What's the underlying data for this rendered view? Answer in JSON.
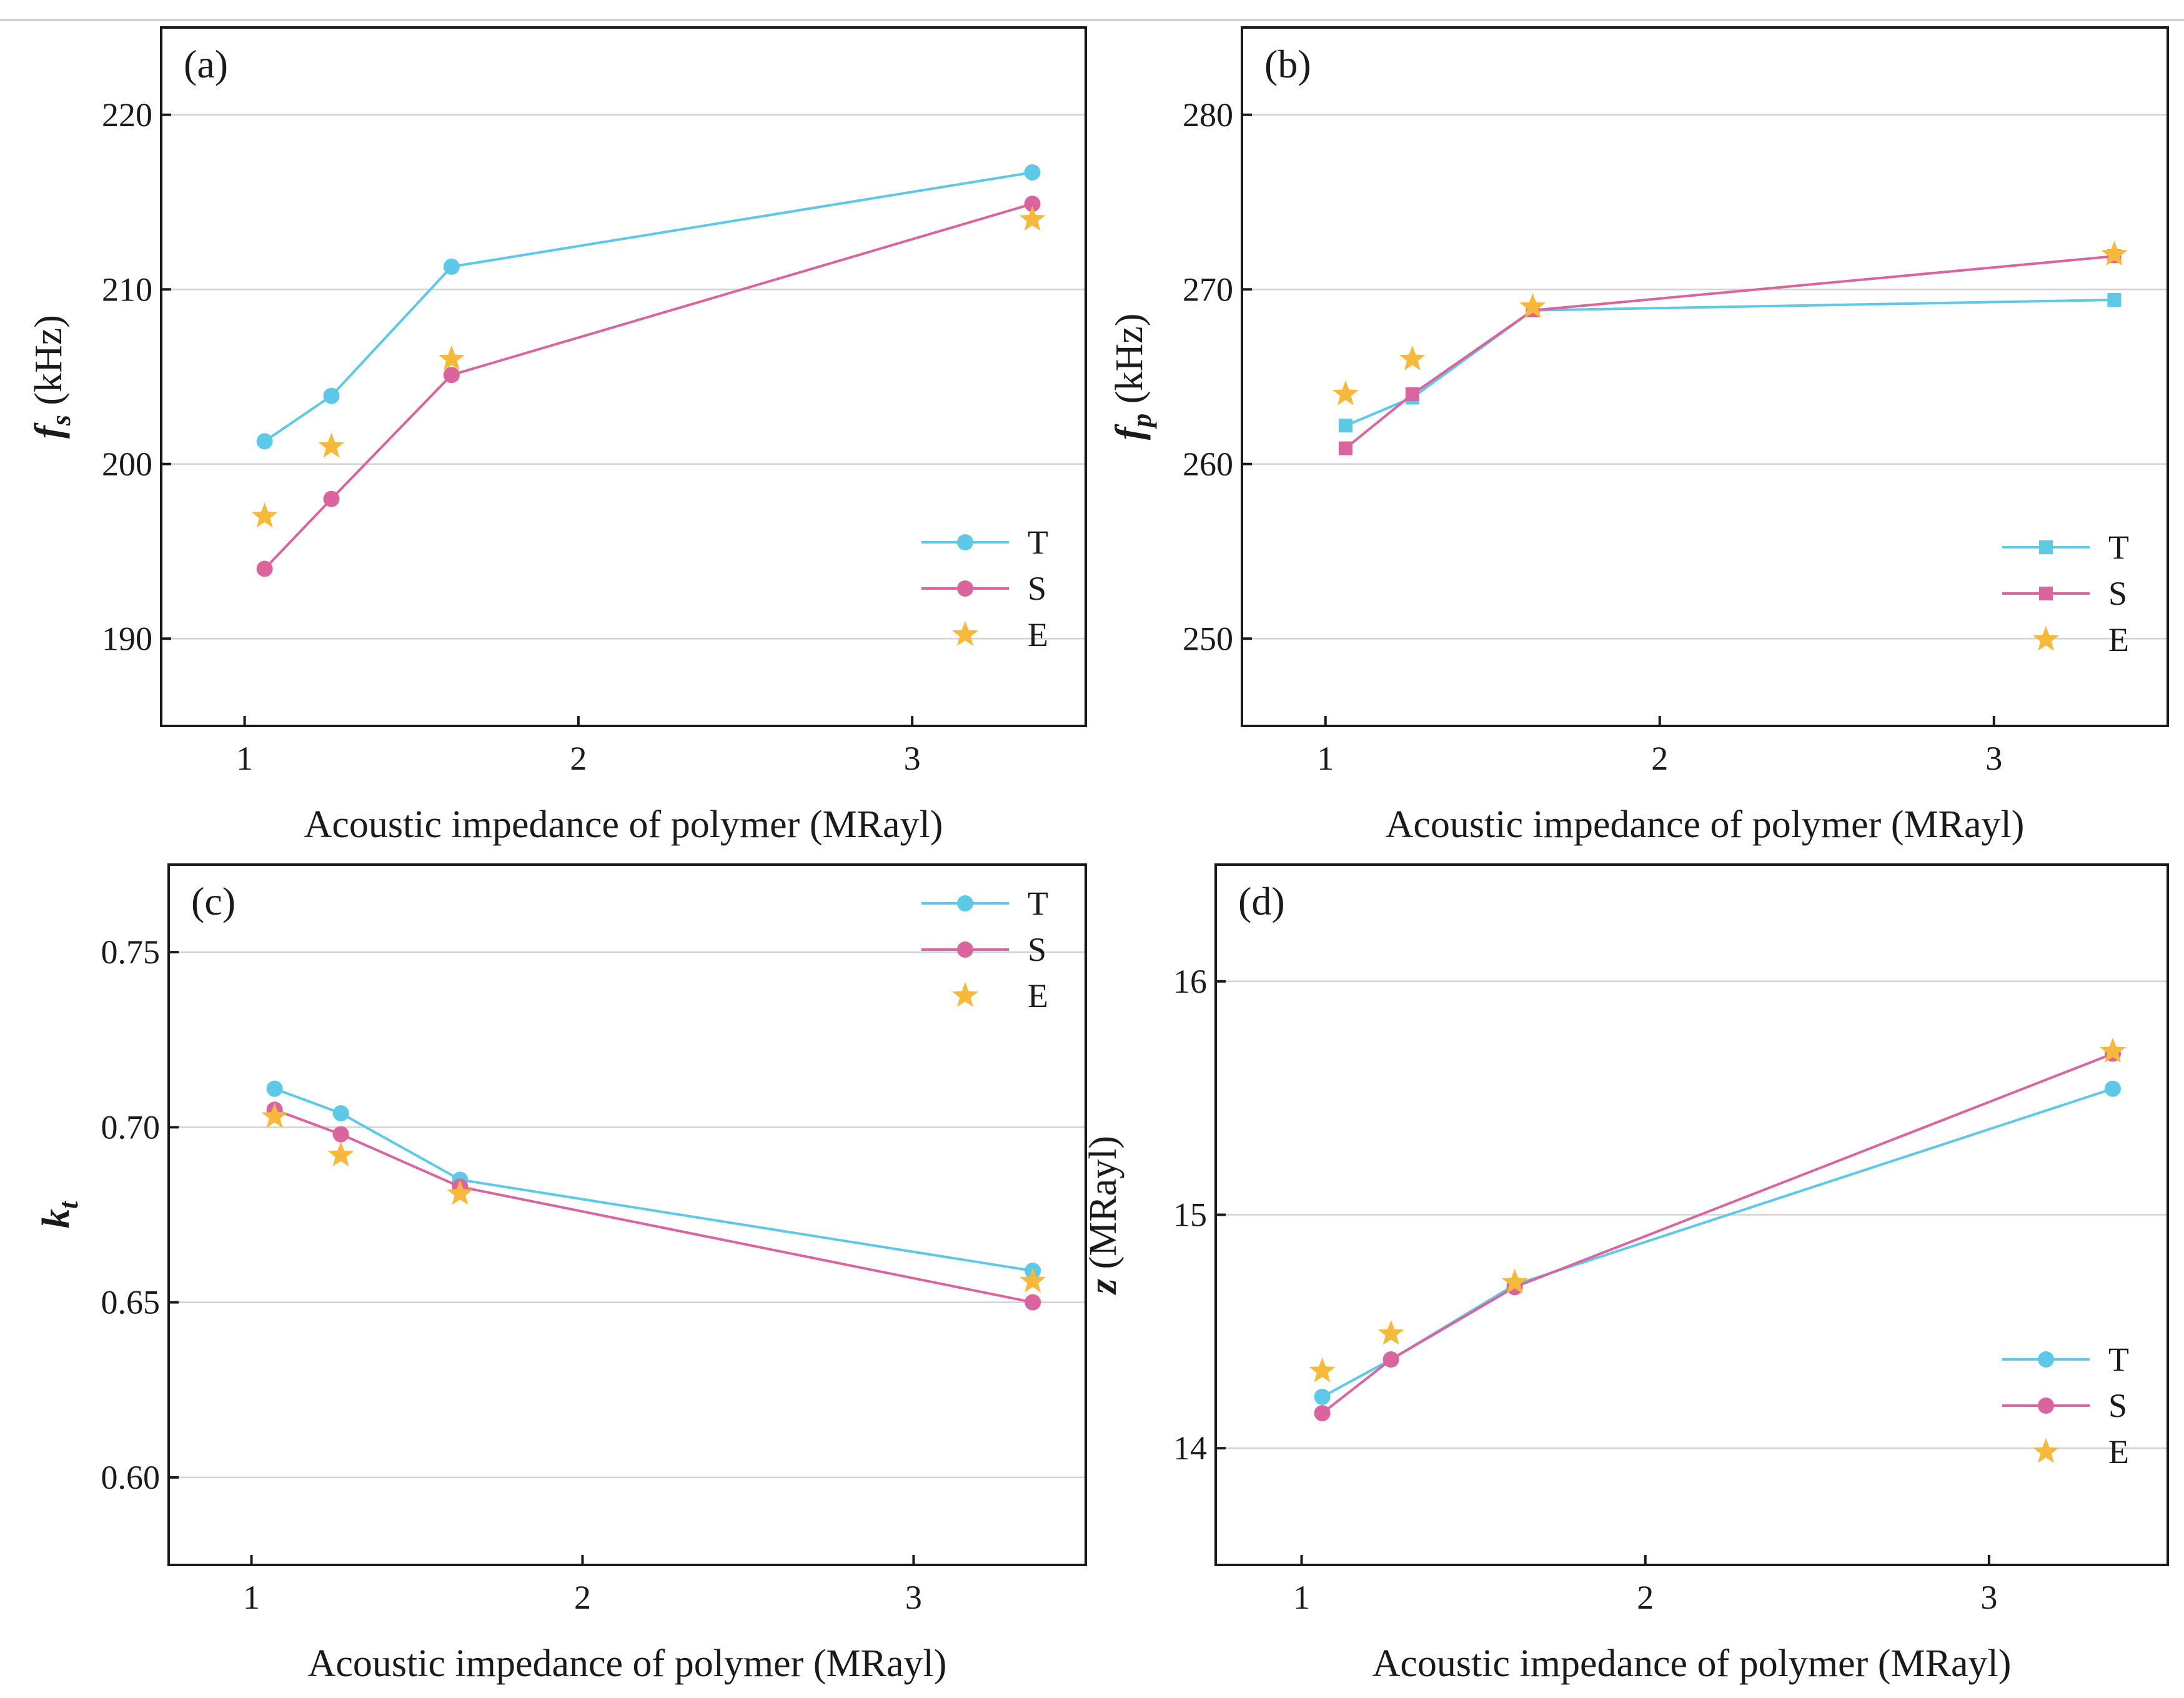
{
  "chart_data": [
    {
      "type": "line",
      "panel_label": "(a)",
      "ylabel": {
        "symbol": "f",
        "subscript": "s",
        "unit": " (kHz)"
      },
      "xlabel": "Acoustic impedance of polymer (MRayl)",
      "xlim": [
        0.75,
        3.52
      ],
      "ylim": [
        185,
        225
      ],
      "xticks": [
        1,
        2,
        3
      ],
      "yticks": [
        190,
        200,
        210,
        220
      ],
      "grid": true,
      "legend_position": "bottom-right",
      "marker": "circle",
      "x": [
        1.06,
        1.26,
        1.62,
        3.36
      ],
      "series": [
        {
          "name": "T",
          "color": "#5ec8e8",
          "style": "line-marker",
          "values": [
            201.3,
            203.9,
            211.3,
            216.7
          ]
        },
        {
          "name": "S",
          "color": "#d9649e",
          "style": "line-marker",
          "values": [
            194.0,
            198.0,
            205.1,
            214.9
          ]
        },
        {
          "name": "E",
          "color": "#f6b93b",
          "style": "star",
          "values": [
            197.0,
            201.0,
            206.0,
            214.0
          ]
        }
      ]
    },
    {
      "type": "line",
      "panel_label": "(b)",
      "ylabel": {
        "symbol": "f",
        "subscript": "p",
        "unit": " (kHz)"
      },
      "xlabel": "Acoustic impedance of polymer (MRayl)",
      "xlim": [
        0.75,
        3.52
      ],
      "ylim": [
        245,
        285
      ],
      "xticks": [
        1,
        2,
        3
      ],
      "yticks": [
        250,
        260,
        270,
        280
      ],
      "grid": true,
      "legend_position": "bottom-right",
      "marker": "square",
      "x": [
        1.06,
        1.26,
        1.62,
        3.36
      ],
      "series": [
        {
          "name": "T",
          "color": "#5ec8e8",
          "style": "line-marker",
          "values": [
            262.2,
            263.8,
            268.8,
            269.4
          ]
        },
        {
          "name": "S",
          "color": "#d9649e",
          "style": "line-marker",
          "values": [
            260.9,
            264.0,
            268.8,
            271.9
          ]
        },
        {
          "name": "E",
          "color": "#f6b93b",
          "style": "star",
          "values": [
            264.0,
            266.0,
            269.0,
            272.0
          ]
        }
      ]
    },
    {
      "type": "line",
      "panel_label": "(c)",
      "ylabel": {
        "symbol": "k",
        "subscript": "t",
        "unit": ""
      },
      "xlabel": "Acoustic impedance of polymer (MRayl)",
      "xlim": [
        0.75,
        3.52
      ],
      "ylim": [
        0.575,
        0.775
      ],
      "xticks": [
        1,
        2,
        3
      ],
      "yticks": [
        0.6,
        0.65,
        0.7,
        0.75
      ],
      "ytick_labels": [
        "0.60",
        "0.65",
        "0.70",
        "0.75"
      ],
      "grid": true,
      "legend_position": "top-right",
      "marker": "circle",
      "x": [
        1.07,
        1.27,
        1.63,
        3.36
      ],
      "series": [
        {
          "name": "T",
          "color": "#5ec8e8",
          "style": "line-marker",
          "values": [
            0.711,
            0.704,
            0.685,
            0.659
          ]
        },
        {
          "name": "S",
          "color": "#d9649e",
          "style": "line-marker",
          "values": [
            0.705,
            0.698,
            0.683,
            0.65
          ]
        },
        {
          "name": "E",
          "color": "#f6b93b",
          "style": "star",
          "values": [
            0.703,
            0.692,
            0.681,
            0.656
          ]
        }
      ]
    },
    {
      "type": "line",
      "panel_label": "(d)",
      "ylabel": {
        "symbol": "z",
        "subscript": "",
        "unit": " (MRayl)"
      },
      "xlabel": "Acoustic impedance of polymer (MRayl)",
      "xlim": [
        0.75,
        3.52
      ],
      "ylim": [
        13.5,
        16.5
      ],
      "xticks": [
        1,
        2,
        3
      ],
      "yticks": [
        14,
        15,
        16
      ],
      "grid": true,
      "legend_position": "bottom-right",
      "marker": "circle",
      "x": [
        1.06,
        1.26,
        1.62,
        3.36
      ],
      "series": [
        {
          "name": "T",
          "color": "#5ec8e8",
          "style": "line-marker",
          "values": [
            14.22,
            14.38,
            14.7,
            15.54
          ]
        },
        {
          "name": "S",
          "color": "#d9649e",
          "style": "line-marker",
          "values": [
            14.15,
            14.38,
            14.69,
            15.69
          ]
        },
        {
          "name": "E",
          "color": "#f6b93b",
          "style": "star",
          "values": [
            14.33,
            14.49,
            14.71,
            15.7
          ]
        }
      ]
    }
  ]
}
